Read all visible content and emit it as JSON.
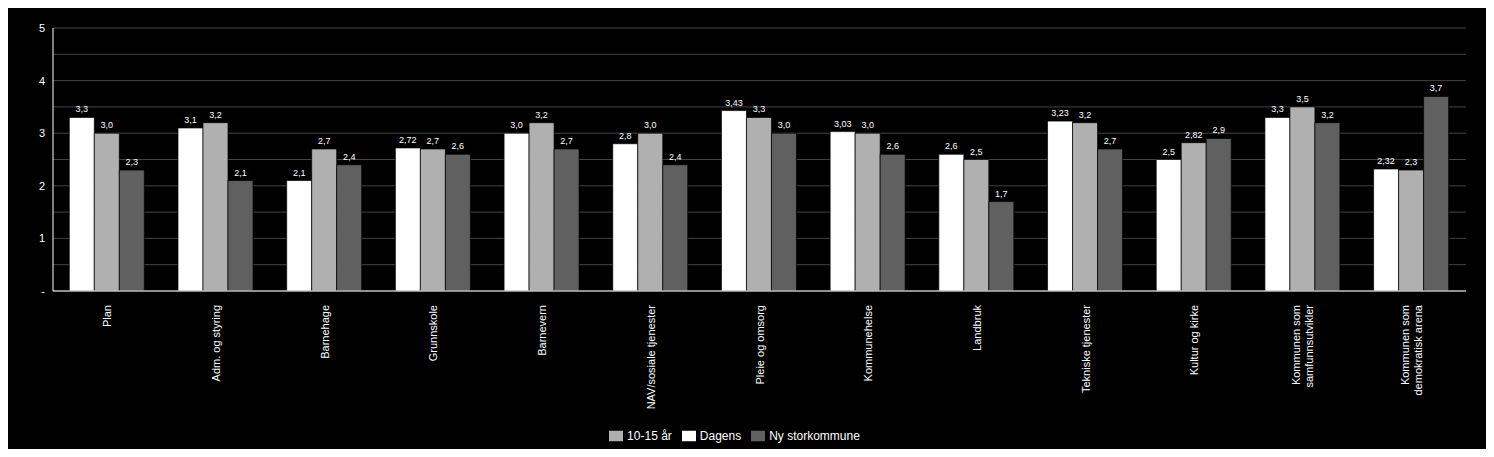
{
  "chart_data": {
    "type": "bar",
    "categories": [
      "Plan",
      "Adm. og styring",
      "Barnehage",
      "Grunnskole",
      "Barnevern",
      "NAV/sosiale tjenester",
      "Pleie og omsorg",
      "Kommunehelse",
      "Landbruk",
      "Tekniske tjenester",
      "Kultur og kirke",
      "Kommunen som\nsamfunnsutvikler",
      "Kommunen som\ndemokratisk arena"
    ],
    "series": [
      {
        "name": "Dagens",
        "color": "#ffffff",
        "values": [
          3.3,
          3.1,
          2.1,
          2.72,
          3.0,
          2.8,
          3.43,
          3.03,
          2.6,
          3.23,
          2.5,
          3.3,
          2.32
        ],
        "value_labels": [
          "3,3",
          "3,1",
          "2,1",
          "2,72",
          "3,0",
          "2,8",
          "3,43",
          "3,03",
          "2,6",
          "3,23",
          "2,5",
          "3,3",
          "2,32"
        ]
      },
      {
        "name": "10-15 år",
        "color": "#b0b0b0",
        "values": [
          3.0,
          3.2,
          2.7,
          2.7,
          3.2,
          3.0,
          3.3,
          3.0,
          2.5,
          3.2,
          2.82,
          3.5,
          2.3
        ],
        "value_labels": [
          "3,0",
          "3,2",
          "2,7",
          "2,7",
          "3,2",
          "3,0",
          "3,3",
          "3,0",
          "2,5",
          "3,2",
          "2,82",
          "3,5",
          "2,3"
        ]
      },
      {
        "name": "Ny storkommune",
        "color": "#606060",
        "values": [
          2.3,
          2.1,
          2.4,
          2.6,
          2.7,
          2.4,
          3.0,
          2.6,
          1.7,
          2.7,
          2.9,
          3.2,
          3.7
        ],
        "value_labels": [
          "2,3",
          "2,1",
          "2,4",
          "2,6",
          "2,7",
          "2,4",
          "3,0",
          "2,6",
          "1,7",
          "2,7",
          "2,9",
          "3,2",
          "3,7"
        ]
      }
    ],
    "ylim": [
      0,
      5
    ],
    "yticks": [
      {
        "value": 0,
        "label": "-"
      },
      {
        "value": 0.5,
        "label": null
      },
      1,
      {
        "value": 1.5,
        "label": null
      },
      2,
      {
        "value": 2.5,
        "label": null
      },
      3,
      {
        "value": 3.5,
        "label": null
      },
      4,
      {
        "value": 4.5,
        "label": null
      },
      5
    ],
    "grid": true,
    "legend": "bottom",
    "data_labels": true
  }
}
